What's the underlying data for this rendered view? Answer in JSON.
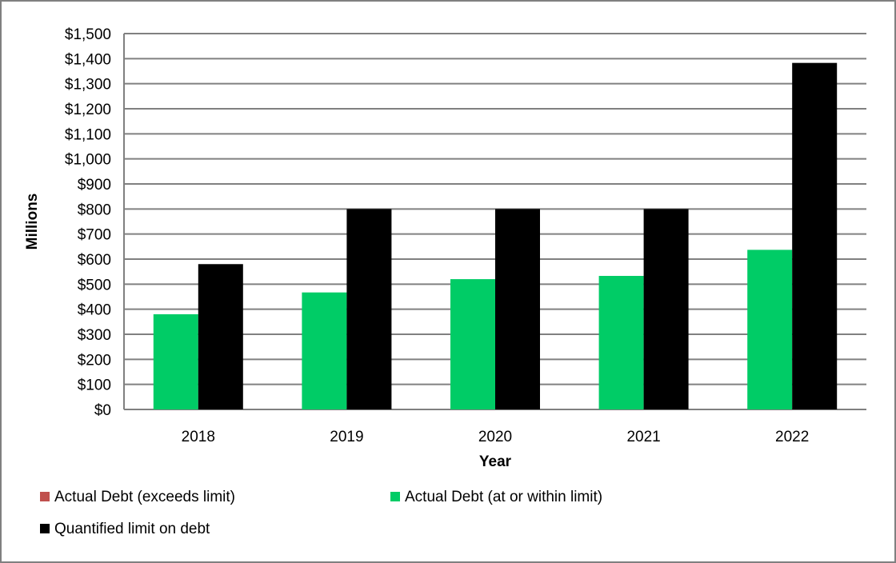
{
  "chart_data": {
    "type": "bar",
    "categories": [
      "2018",
      "2019",
      "2020",
      "2021",
      "2022"
    ],
    "series": [
      {
        "name": "Actual Debt (exceeds limit)",
        "color": "#c0504d",
        "values": [
          0,
          0,
          0,
          0,
          0
        ]
      },
      {
        "name": "Actual Debt (at or within limit)",
        "color": "#00cc66",
        "values": [
          380,
          467,
          520,
          533,
          637
        ]
      },
      {
        "name": "Quantified limit on debt",
        "color": "#000000",
        "values": [
          580,
          800,
          800,
          800,
          1383
        ]
      }
    ],
    "xlabel": "Year",
    "ylabel": "Millions",
    "ylim": [
      0,
      1500
    ],
    "ytick_step": 100,
    "ytick_labels": [
      "$0",
      "$100",
      "$200",
      "$300",
      "$400",
      "$500",
      "$600",
      "$700",
      "$800",
      "$900",
      "$1,000",
      "$1,100",
      "$1,200",
      "$1,300",
      "$1,400",
      "$1,500"
    ],
    "grid": true,
    "legend_position": "bottom-left"
  }
}
